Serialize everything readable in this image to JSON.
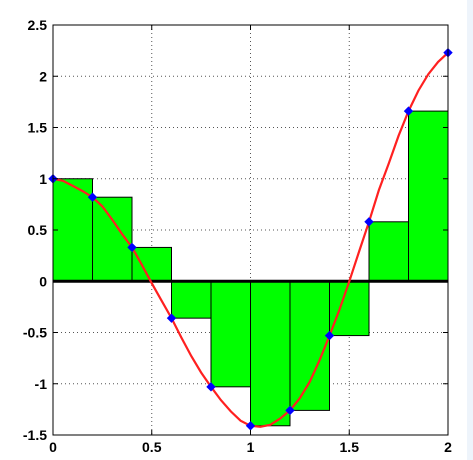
{
  "chart_data": {
    "type": "bar",
    "title": "",
    "xlabel": "",
    "ylabel": "",
    "xlim": [
      0,
      2
    ],
    "ylim": [
      -1.5,
      2.5
    ],
    "grid": true,
    "grid_style": "dotted",
    "x_ticks": [
      "0",
      "0.5",
      "1",
      "1.5",
      "2"
    ],
    "y_ticks": [
      "2.5",
      "2",
      "1.5",
      "1",
      "0.5",
      "0",
      "-0.5",
      "-1",
      "-1.5"
    ],
    "series": [
      {
        "kind": "bar",
        "color": "#00ff00",
        "edge_color": "#000000",
        "bin_width": 0.2,
        "x": [
          0,
          0.2,
          0.4,
          0.6,
          0.8,
          1.0,
          1.2,
          1.4,
          1.6,
          1.8
        ],
        "values": [
          1.0,
          0.82,
          0.33,
          -0.36,
          -1.03,
          -1.41,
          -1.26,
          -0.53,
          0.58,
          1.66
        ]
      },
      {
        "kind": "line",
        "color": "#ff2020",
        "x": [
          0,
          0.05,
          0.1,
          0.15,
          0.2,
          0.25,
          0.3,
          0.35,
          0.4,
          0.45,
          0.5,
          0.55,
          0.6,
          0.65,
          0.7,
          0.75,
          0.8,
          0.85,
          0.9,
          0.95,
          1.0,
          1.05,
          1.1,
          1.15,
          1.2,
          1.25,
          1.3,
          1.35,
          1.4,
          1.45,
          1.5,
          1.55,
          1.6,
          1.65,
          1.7,
          1.75,
          1.8,
          1.85,
          1.9,
          1.95,
          2.0
        ],
        "y": [
          1.0,
          0.98,
          0.93,
          0.88,
          0.82,
          0.73,
          0.6,
          0.46,
          0.33,
          0.16,
          -0.02,
          -0.19,
          -0.36,
          -0.55,
          -0.73,
          -0.89,
          -1.03,
          -1.16,
          -1.27,
          -1.36,
          -1.41,
          -1.42,
          -1.4,
          -1.34,
          -1.26,
          -1.14,
          -0.98,
          -0.77,
          -0.53,
          -0.28,
          0.0,
          0.29,
          0.58,
          0.89,
          1.15,
          1.42,
          1.66,
          1.86,
          2.02,
          2.14,
          2.23
        ]
      },
      {
        "kind": "scatter",
        "color": "#0000ff",
        "marker": "diamond",
        "x": [
          0,
          0.2,
          0.4,
          0.6,
          0.8,
          1.0,
          1.2,
          1.4,
          1.6,
          1.8,
          2.0
        ],
        "y": [
          1.0,
          0.82,
          0.33,
          -0.36,
          -1.03,
          -1.41,
          -1.26,
          -0.53,
          0.58,
          1.66,
          2.23
        ]
      }
    ]
  },
  "colors": {
    "zero_line": "#000000",
    "grid": "#555555",
    "background": "#ffffff"
  }
}
